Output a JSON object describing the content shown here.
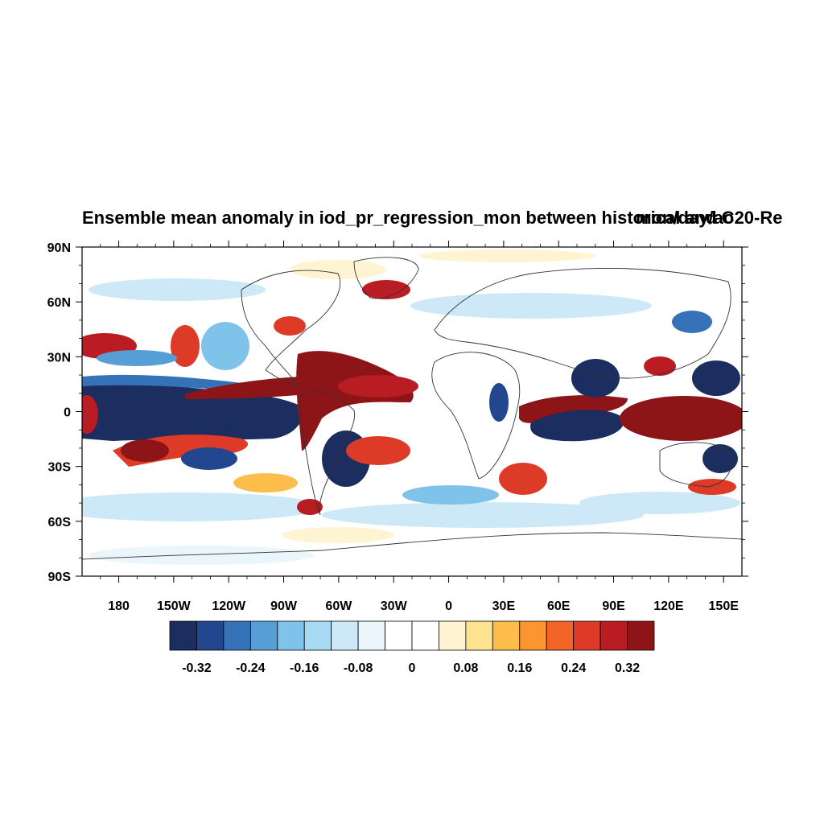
{
  "title": "Ensemble mean anomaly in iod_pr_regression_mon between historical and C20-Re",
  "title_right": "mon/day/ao",
  "map": {
    "lat_labels": [
      "90N",
      "60N",
      "30N",
      "0",
      "30S",
      "60S",
      "90S"
    ],
    "lat_values": [
      90,
      60,
      30,
      0,
      -30,
      -60,
      -90
    ],
    "lon_labels": [
      "180",
      "150W",
      "120W",
      "90W",
      "60W",
      "30W",
      "0",
      "30E",
      "60E",
      "90E",
      "120E",
      "150E"
    ],
    "lon_values": [
      -180,
      -150,
      -120,
      -90,
      -60,
      -30,
      0,
      30,
      60,
      90,
      120,
      150
    ],
    "lon_range": [
      -200,
      160
    ],
    "lat_range": [
      -90,
      90
    ]
  },
  "colorbar": {
    "colors": [
      "#1c2d5f",
      "#22478f",
      "#3572b8",
      "#559fd6",
      "#80c3ea",
      "#a7dbf3",
      "#cde9f7",
      "#eaf6fc",
      "#ffffff",
      "#ffffff",
      "#fff4d2",
      "#fde38f",
      "#fdbd4a",
      "#fa9530",
      "#f26428",
      "#dd3a27",
      "#b91c23",
      "#8d1518"
    ],
    "labels": [
      "-0.32",
      "-0.24",
      "-0.16",
      "-0.08",
      "0",
      "0.08",
      "0.16",
      "0.24",
      "0.32"
    ],
    "label_values": [
      -0.32,
      -0.24,
      -0.16,
      -0.08,
      0,
      0.08,
      0.16,
      0.24,
      0.32
    ]
  }
}
